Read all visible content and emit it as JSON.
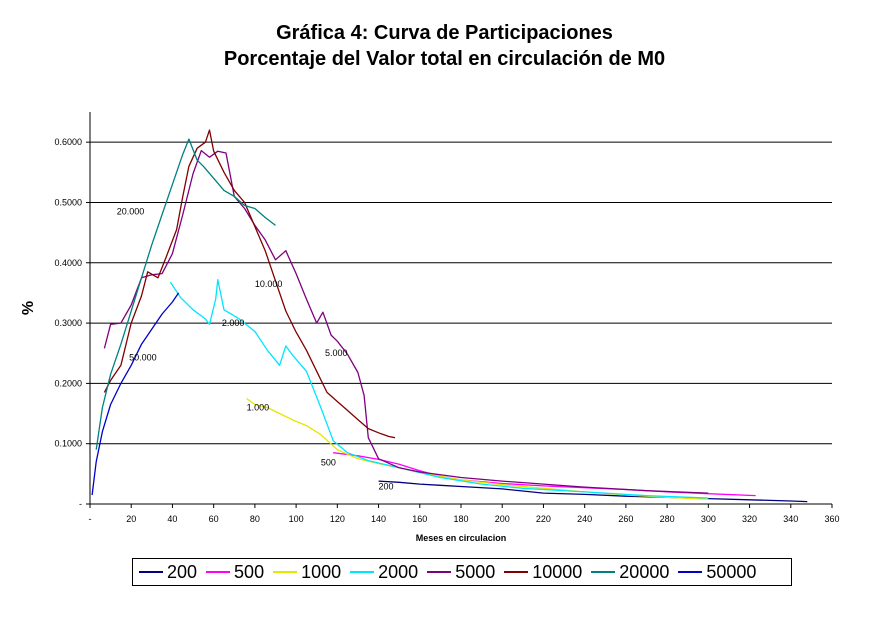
{
  "chart_data": {
    "type": "line",
    "title": "Gráfica 4: Curva de Participaciones",
    "subtitle": "Porcentaje del Valor total en circulación de M0",
    "xlabel": "Meses en circulacion",
    "ylabel": "%",
    "xlim": [
      0,
      360
    ],
    "ylim": [
      0,
      0.65
    ],
    "x_ticks": [
      "-",
      "20",
      "40",
      "60",
      "80",
      "100",
      "120",
      "140",
      "160",
      "180",
      "200",
      "220",
      "240",
      "260",
      "280",
      "300",
      "320",
      "340",
      "360"
    ],
    "y_ticks": [
      "-",
      "0.1000",
      "0.2000",
      "0.3000",
      "0.4000",
      "0.5000",
      "0.6000"
    ],
    "y_tick_values": [
      0,
      0.1,
      0.2,
      0.3,
      0.4,
      0.5,
      0.6
    ],
    "grid": true,
    "legend_position": "bottom",
    "series": [
      {
        "name": "200",
        "color": "#000080",
        "label": "200",
        "label_at": [
          140,
          0.024
        ],
        "points": [
          [
            140,
            0.038
          ],
          [
            150,
            0.036
          ],
          [
            160,
            0.033
          ],
          [
            170,
            0.031
          ],
          [
            180,
            0.029
          ],
          [
            200,
            0.025
          ],
          [
            220,
            0.018
          ],
          [
            240,
            0.016
          ],
          [
            260,
            0.013
          ],
          [
            280,
            0.011
          ],
          [
            300,
            0.009
          ],
          [
            320,
            0.007
          ],
          [
            340,
            0.005
          ],
          [
            348,
            0.004
          ]
        ]
      },
      {
        "name": "500",
        "color": "#ff00ff",
        "label": "500",
        "label_at": [
          112,
          0.064
        ],
        "points": [
          [
            118,
            0.085
          ],
          [
            130,
            0.08
          ],
          [
            140,
            0.074
          ],
          [
            150,
            0.066
          ],
          [
            160,
            0.055
          ],
          [
            170,
            0.046
          ],
          [
            180,
            0.04
          ],
          [
            200,
            0.034
          ],
          [
            220,
            0.03
          ],
          [
            240,
            0.027
          ],
          [
            260,
            0.024
          ],
          [
            280,
            0.02
          ],
          [
            300,
            0.017
          ],
          [
            323,
            0.014
          ]
        ]
      },
      {
        "name": "1000",
        "color": "#e6e600",
        "label": "1.000",
        "label_at": [
          76,
          0.155
        ],
        "points": [
          [
            76,
            0.175
          ],
          [
            80,
            0.165
          ],
          [
            86,
            0.16
          ],
          [
            92,
            0.15
          ],
          [
            98,
            0.14
          ],
          [
            105,
            0.13
          ],
          [
            112,
            0.115
          ],
          [
            120,
            0.09
          ],
          [
            130,
            0.075
          ],
          [
            140,
            0.067
          ],
          [
            150,
            0.06
          ],
          [
            160,
            0.052
          ],
          [
            170,
            0.046
          ],
          [
            180,
            0.04
          ],
          [
            200,
            0.032
          ],
          [
            220,
            0.026
          ],
          [
            240,
            0.02
          ],
          [
            260,
            0.015
          ],
          [
            280,
            0.011
          ],
          [
            300,
            0.008
          ]
        ]
      },
      {
        "name": "2000",
        "color": "#00e5ff",
        "label": "2.000",
        "label_at": [
          64,
          0.295
        ],
        "points": [
          [
            39,
            0.368
          ],
          [
            44,
            0.342
          ],
          [
            50,
            0.322
          ],
          [
            56,
            0.307
          ],
          [
            58,
            0.298
          ],
          [
            61,
            0.34
          ],
          [
            62,
            0.372
          ],
          [
            65,
            0.322
          ],
          [
            72,
            0.308
          ],
          [
            80,
            0.286
          ],
          [
            86,
            0.255
          ],
          [
            92,
            0.23
          ],
          [
            95,
            0.262
          ],
          [
            98,
            0.248
          ],
          [
            105,
            0.22
          ],
          [
            112,
            0.16
          ],
          [
            118,
            0.105
          ],
          [
            125,
            0.085
          ],
          [
            135,
            0.072
          ],
          [
            150,
            0.06
          ],
          [
            170,
            0.044
          ],
          [
            190,
            0.033
          ],
          [
            210,
            0.026
          ],
          [
            240,
            0.02
          ],
          [
            270,
            0.014
          ],
          [
            300,
            0.01
          ]
        ]
      },
      {
        "name": "5000",
        "color": "#7f007f",
        "label": "5.000",
        "label_at": [
          114,
          0.245
        ],
        "points": [
          [
            7,
            0.258
          ],
          [
            10,
            0.298
          ],
          [
            15,
            0.3
          ],
          [
            20,
            0.33
          ],
          [
            25,
            0.375
          ],
          [
            30,
            0.38
          ],
          [
            35,
            0.382
          ],
          [
            40,
            0.415
          ],
          [
            45,
            0.48
          ],
          [
            50,
            0.548
          ],
          [
            54,
            0.586
          ],
          [
            58,
            0.575
          ],
          [
            62,
            0.585
          ],
          [
            66,
            0.582
          ],
          [
            70,
            0.51
          ],
          [
            75,
            0.49
          ],
          [
            80,
            0.462
          ],
          [
            85,
            0.438
          ],
          [
            90,
            0.405
          ],
          [
            95,
            0.42
          ],
          [
            100,
            0.382
          ],
          [
            105,
            0.34
          ],
          [
            110,
            0.3
          ],
          [
            113,
            0.318
          ],
          [
            117,
            0.28
          ],
          [
            120,
            0.27
          ],
          [
            125,
            0.248
          ],
          [
            130,
            0.218
          ],
          [
            133,
            0.18
          ],
          [
            135,
            0.11
          ],
          [
            140,
            0.075
          ],
          [
            150,
            0.06
          ],
          [
            160,
            0.053
          ],
          [
            180,
            0.044
          ],
          [
            200,
            0.038
          ],
          [
            220,
            0.033
          ],
          [
            240,
            0.028
          ],
          [
            270,
            0.022
          ],
          [
            300,
            0.018
          ]
        ]
      },
      {
        "name": "10000",
        "color": "#800000",
        "label": "10.000",
        "label_at": [
          80,
          0.36
        ],
        "points": [
          [
            7,
            0.185
          ],
          [
            10,
            0.205
          ],
          [
            15,
            0.23
          ],
          [
            20,
            0.3
          ],
          [
            25,
            0.345
          ],
          [
            28,
            0.385
          ],
          [
            33,
            0.375
          ],
          [
            37,
            0.41
          ],
          [
            42,
            0.455
          ],
          [
            45,
            0.51
          ],
          [
            48,
            0.56
          ],
          [
            52,
            0.59
          ],
          [
            56,
            0.6
          ],
          [
            58,
            0.62
          ],
          [
            60,
            0.585
          ],
          [
            65,
            0.55
          ],
          [
            70,
            0.52
          ],
          [
            75,
            0.5
          ],
          [
            80,
            0.46
          ],
          [
            85,
            0.42
          ],
          [
            90,
            0.37
          ],
          [
            95,
            0.32
          ],
          [
            100,
            0.285
          ],
          [
            105,
            0.255
          ],
          [
            110,
            0.22
          ],
          [
            115,
            0.185
          ],
          [
            120,
            0.17
          ],
          [
            125,
            0.155
          ],
          [
            130,
            0.14
          ],
          [
            135,
            0.125
          ],
          [
            140,
            0.118
          ],
          [
            145,
            0.112
          ],
          [
            148,
            0.11
          ]
        ]
      },
      {
        "name": "20000",
        "color": "#008080",
        "label": "20.000",
        "label_at": [
          13,
          0.48
        ],
        "points": [
          [
            3,
            0.09
          ],
          [
            6,
            0.16
          ],
          [
            10,
            0.215
          ],
          [
            15,
            0.265
          ],
          [
            20,
            0.32
          ],
          [
            25,
            0.375
          ],
          [
            30,
            0.43
          ],
          [
            35,
            0.48
          ],
          [
            40,
            0.53
          ],
          [
            45,
            0.58
          ],
          [
            48,
            0.605
          ],
          [
            52,
            0.57
          ],
          [
            55,
            0.56
          ],
          [
            60,
            0.54
          ],
          [
            65,
            0.52
          ],
          [
            70,
            0.51
          ],
          [
            75,
            0.495
          ],
          [
            80,
            0.49
          ],
          [
            85,
            0.475
          ],
          [
            90,
            0.462
          ]
        ]
      },
      {
        "name": "50000",
        "color": "#0000cc",
        "label": "50.000",
        "label_at": [
          19,
          0.238
        ],
        "points": [
          [
            1,
            0.015
          ],
          [
            3,
            0.07
          ],
          [
            6,
            0.12
          ],
          [
            10,
            0.165
          ],
          [
            15,
            0.2
          ],
          [
            20,
            0.23
          ],
          [
            25,
            0.265
          ],
          [
            30,
            0.29
          ],
          [
            35,
            0.315
          ],
          [
            40,
            0.335
          ],
          [
            43,
            0.35
          ]
        ]
      }
    ]
  },
  "legend": {
    "items": [
      {
        "label": "200",
        "color": "#000080"
      },
      {
        "label": "500",
        "color": "#ff00ff"
      },
      {
        "label": "1000",
        "color": "#e6e600"
      },
      {
        "label": "2000",
        "color": "#00e5ff"
      },
      {
        "label": "5000",
        "color": "#7f007f"
      },
      {
        "label": "10000",
        "color": "#800000"
      },
      {
        "label": "20000",
        "color": "#008080"
      },
      {
        "label": "50000",
        "color": "#0000cc"
      }
    ]
  }
}
